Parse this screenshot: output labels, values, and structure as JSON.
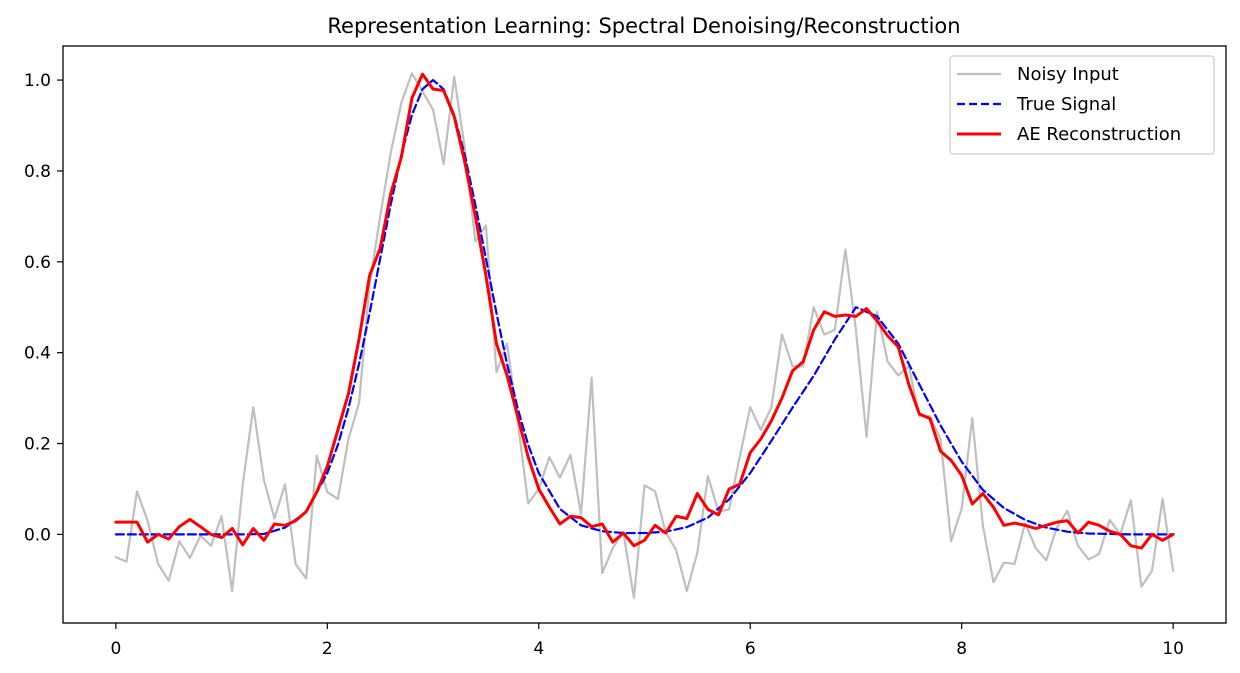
{
  "chart_data": {
    "type": "line",
    "title": "Representation Learning: Spectral Denoising/Reconstruction",
    "xlabel": "",
    "ylabel": "",
    "xlim": [
      -0.5,
      10.5
    ],
    "ylim": [
      -0.195,
      1.075
    ],
    "xticks": [
      0,
      2,
      4,
      6,
      8,
      10
    ],
    "yticks": [
      0.0,
      0.2,
      0.4,
      0.6,
      0.8,
      1.0
    ],
    "xtick_labels": [
      "0",
      "2",
      "4",
      "6",
      "8",
      "10"
    ],
    "ytick_labels": [
      "0.0",
      "0.2",
      "0.4",
      "0.6",
      "0.8",
      "1.0"
    ],
    "grid": false,
    "legend_position": "upper-right",
    "series": [
      {
        "name": "Noisy Input",
        "color": "#bfbfbf",
        "style": "solid",
        "x": [
          0.0,
          0.1,
          0.2,
          0.3,
          0.4,
          0.5,
          0.6,
          0.7,
          0.8,
          0.9,
          1.0,
          1.1,
          1.2,
          1.3,
          1.4,
          1.5,
          1.6,
          1.7,
          1.8,
          1.9,
          2.0,
          2.1,
          2.2,
          2.3,
          2.4,
          2.5,
          2.6,
          2.7,
          2.8,
          2.9,
          3.0,
          3.1,
          3.2,
          3.3,
          3.4,
          3.5,
          3.6,
          3.7,
          3.8,
          3.9,
          4.0,
          4.1,
          4.2,
          4.3,
          4.4,
          4.5,
          4.6,
          4.7,
          4.8,
          4.9,
          5.0,
          5.1,
          5.2,
          5.3,
          5.4,
          5.5,
          5.6,
          5.7,
          5.8,
          5.9,
          6.0,
          6.1,
          6.2,
          6.3,
          6.4,
          6.5,
          6.6,
          6.7,
          6.8,
          6.9,
          7.0,
          7.1,
          7.2,
          7.3,
          7.4,
          7.5,
          7.6,
          7.7,
          7.8,
          7.9,
          8.0,
          8.1,
          8.2,
          8.3,
          8.4,
          8.5,
          8.6,
          8.7,
          8.8,
          8.9,
          9.0,
          9.1,
          9.2,
          9.3,
          9.4,
          9.5,
          9.6,
          9.7,
          9.8,
          9.9,
          10.0
        ],
        "values": [
          -0.05,
          -0.06,
          0.095,
          0.03,
          -0.065,
          -0.102,
          -0.015,
          -0.052,
          -0.003,
          -0.025,
          0.04,
          -0.125,
          0.11,
          0.28,
          0.12,
          0.035,
          0.11,
          -0.065,
          -0.097,
          0.173,
          0.093,
          0.078,
          0.21,
          0.29,
          0.55,
          0.7,
          0.84,
          0.95,
          1.015,
          0.975,
          0.935,
          0.815,
          1.007,
          0.85,
          0.645,
          0.68,
          0.357,
          0.42,
          0.25,
          0.068,
          0.1,
          0.17,
          0.125,
          0.175,
          0.045,
          0.345,
          -0.085,
          -0.03,
          0.005,
          -0.14,
          0.108,
          0.095,
          0.005,
          -0.035,
          -0.125,
          -0.04,
          0.128,
          0.05,
          0.055,
          0.17,
          0.28,
          0.23,
          0.28,
          0.44,
          0.37,
          0.37,
          0.5,
          0.44,
          0.45,
          0.627,
          0.45,
          0.215,
          0.49,
          0.38,
          0.35,
          0.37,
          0.26,
          0.26,
          0.21,
          -0.015,
          0.057,
          0.256,
          0.02,
          -0.105,
          -0.062,
          -0.065,
          0.025,
          -0.03,
          -0.057,
          0.015,
          0.052,
          -0.025,
          -0.055,
          -0.043,
          0.032,
          0.0,
          0.075,
          -0.115,
          -0.08,
          0.078,
          -0.08
        ]
      },
      {
        "name": "True Signal",
        "color": "#0000ff",
        "style": "dashed",
        "x": [
          0.0,
          0.2,
          0.4,
          0.6,
          0.8,
          1.0,
          1.2,
          1.4,
          1.6,
          1.8,
          2.0,
          2.1,
          2.2,
          2.3,
          2.4,
          2.5,
          2.6,
          2.7,
          2.8,
          2.9,
          3.0,
          3.1,
          3.2,
          3.3,
          3.4,
          3.5,
          3.6,
          3.7,
          3.8,
          3.9,
          4.0,
          4.2,
          4.4,
          4.6,
          4.8,
          5.0,
          5.2,
          5.4,
          5.6,
          5.8,
          6.0,
          6.2,
          6.4,
          6.6,
          6.8,
          7.0,
          7.2,
          7.4,
          7.6,
          7.8,
          8.0,
          8.2,
          8.4,
          8.6,
          8.8,
          9.0,
          9.2,
          9.4,
          9.6,
          9.8,
          10.0
        ],
        "values": [
          0.0,
          0.0,
          0.0,
          0.0,
          0.0,
          0.0,
          0.0,
          0.001,
          0.015,
          0.05,
          0.135,
          0.197,
          0.278,
          0.375,
          0.487,
          0.607,
          0.726,
          0.835,
          0.923,
          0.98,
          1.0,
          0.98,
          0.923,
          0.835,
          0.726,
          0.607,
          0.487,
          0.375,
          0.278,
          0.197,
          0.135,
          0.056,
          0.02,
          0.007,
          0.003,
          0.003,
          0.006,
          0.016,
          0.037,
          0.077,
          0.135,
          0.206,
          0.279,
          0.349,
          0.429,
          0.5,
          0.48,
          0.42,
          0.33,
          0.24,
          0.16,
          0.098,
          0.058,
          0.032,
          0.015,
          0.006,
          0.002,
          0.001,
          0.0,
          0.0,
          0.0
        ]
      },
      {
        "name": "AE Reconstruction",
        "color": "#ff0000",
        "style": "solid",
        "x": [
          0.0,
          0.1,
          0.2,
          0.3,
          0.4,
          0.5,
          0.6,
          0.7,
          0.8,
          0.9,
          1.0,
          1.1,
          1.2,
          1.3,
          1.4,
          1.5,
          1.6,
          1.7,
          1.8,
          1.9,
          2.0,
          2.1,
          2.2,
          2.3,
          2.4,
          2.5,
          2.6,
          2.7,
          2.8,
          2.9,
          3.0,
          3.1,
          3.2,
          3.3,
          3.4,
          3.5,
          3.6,
          3.7,
          3.8,
          3.9,
          4.0,
          4.1,
          4.2,
          4.3,
          4.4,
          4.5,
          4.6,
          4.7,
          4.8,
          4.9,
          5.0,
          5.1,
          5.2,
          5.3,
          5.4,
          5.5,
          5.6,
          5.7,
          5.8,
          5.9,
          6.0,
          6.1,
          6.2,
          6.3,
          6.4,
          6.5,
          6.6,
          6.7,
          6.8,
          6.9,
          7.0,
          7.1,
          7.2,
          7.3,
          7.4,
          7.5,
          7.6,
          7.7,
          7.8,
          7.9,
          8.0,
          8.1,
          8.2,
          8.3,
          8.4,
          8.5,
          8.6,
          8.7,
          8.8,
          8.9,
          9.0,
          9.1,
          9.2,
          9.3,
          9.4,
          9.5,
          9.6,
          9.7,
          9.8,
          9.9,
          10.0
        ],
        "values": [
          0.027,
          0.027,
          0.027,
          -0.017,
          0.0,
          -0.01,
          0.017,
          0.033,
          0.017,
          0.0,
          -0.007,
          0.013,
          -0.023,
          0.013,
          -0.013,
          0.023,
          0.02,
          0.03,
          0.05,
          0.093,
          0.15,
          0.23,
          0.31,
          0.43,
          0.57,
          0.63,
          0.75,
          0.83,
          0.96,
          1.013,
          0.98,
          0.977,
          0.92,
          0.82,
          0.7,
          0.57,
          0.42,
          0.35,
          0.26,
          0.17,
          0.1,
          0.06,
          0.023,
          0.04,
          0.037,
          0.017,
          0.023,
          -0.017,
          0.003,
          -0.025,
          -0.013,
          0.02,
          0.003,
          0.04,
          0.035,
          0.09,
          0.055,
          0.043,
          0.1,
          0.11,
          0.18,
          0.21,
          0.25,
          0.3,
          0.36,
          0.38,
          0.45,
          0.49,
          0.48,
          0.483,
          0.48,
          0.497,
          0.47,
          0.437,
          0.413,
          0.33,
          0.265,
          0.255,
          0.183,
          0.163,
          0.13,
          0.067,
          0.09,
          0.06,
          0.02,
          0.025,
          0.02,
          0.013,
          0.02,
          0.027,
          0.03,
          0.003,
          0.027,
          0.02,
          0.007,
          0.0,
          -0.025,
          -0.03,
          0.0,
          -0.013,
          0.0
        ]
      }
    ]
  }
}
